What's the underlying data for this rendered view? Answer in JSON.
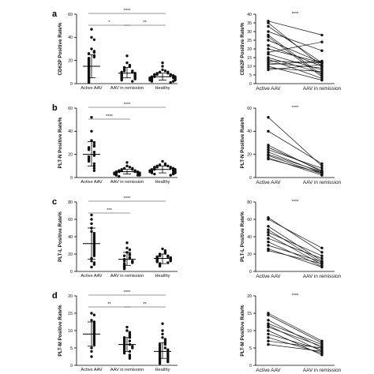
{
  "chart_data": [
    {
      "panel": "a",
      "type": "scatter",
      "variant": "dot-plot",
      "ylabel": "CD62P Positive Rate%",
      "ylim": [
        0,
        60
      ],
      "yticks": [
        0,
        20,
        40,
        60
      ],
      "categories": [
        "Active AAV",
        "AAV in remission",
        "Healthy"
      ],
      "groups": [
        {
          "name": "Active AAV",
          "mean": 15,
          "sd_low": 5,
          "sd_high": 25,
          "values": [
            47,
            40,
            38,
            30,
            28,
            27,
            26,
            24,
            23,
            22,
            21,
            20,
            19,
            18,
            17,
            16,
            15,
            14,
            13,
            12,
            11,
            10,
            9,
            8,
            7,
            6,
            5,
            4,
            3,
            2,
            1
          ]
        },
        {
          "name": "AAV in remission",
          "mean": 9,
          "sd_low": 5,
          "sd_high": 14,
          "values": [
            24,
            18,
            16,
            15,
            14,
            13,
            12,
            11,
            11,
            10,
            10,
            9,
            9,
            8,
            8,
            7,
            7,
            6,
            6,
            5,
            5,
            4,
            4,
            3,
            2
          ]
        },
        {
          "name": "Healthy",
          "mean": 6,
          "sd_low": 3,
          "sd_high": 9,
          "values": [
            18,
            15,
            12,
            11,
            10,
            10,
            9,
            9,
            8,
            8,
            8,
            7,
            7,
            7,
            6,
            6,
            6,
            6,
            5,
            5,
            5,
            5,
            4,
            4,
            4,
            4,
            3,
            3,
            3,
            2,
            2,
            1
          ]
        }
      ],
      "significance": [
        {
          "from": 0,
          "to": 2,
          "label": "****",
          "level": 2
        },
        {
          "from": 0,
          "to": 1,
          "label": "*",
          "level": 1
        },
        {
          "from": 1,
          "to": 2,
          "label": "**",
          "level": 1
        }
      ]
    },
    {
      "panel": "a",
      "type": "line",
      "variant": "paired",
      "ylabel": "CD62P Positive Rate%",
      "ylim": [
        0,
        40
      ],
      "yticks": [
        0,
        5,
        10,
        15,
        20,
        25,
        30,
        35,
        40
      ],
      "categories": [
        "Active AAV",
        "AAV in remission"
      ],
      "pairs": [
        [
          36,
          28
        ],
        [
          35,
          10
        ],
        [
          33,
          12
        ],
        [
          30,
          19
        ],
        [
          28,
          5
        ],
        [
          27,
          4
        ],
        [
          25,
          12
        ],
        [
          22,
          10
        ],
        [
          20,
          12
        ],
        [
          18,
          24
        ],
        [
          17,
          8
        ],
        [
          15,
          6
        ],
        [
          14,
          3
        ],
        [
          13,
          12
        ],
        [
          12,
          9
        ],
        [
          11,
          13
        ],
        [
          10,
          2
        ],
        [
          9,
          7
        ],
        [
          8,
          11
        ]
      ],
      "significance": [
        {
          "from": 0,
          "to": 1,
          "label": "****"
        }
      ]
    },
    {
      "panel": "b",
      "type": "scatter",
      "variant": "dot-plot",
      "ylabel": "PLT-N Positive Rate%",
      "ylim": [
        0,
        60
      ],
      "yticks": [
        0,
        20,
        40,
        60
      ],
      "categories": [
        "Active AAV",
        "AAV in remission",
        "Healthy"
      ],
      "groups": [
        {
          "name": "Active AAV",
          "mean": 20,
          "sd_low": 10,
          "sd_high": 31,
          "values": [
            52,
            40,
            32,
            30,
            28,
            27,
            26,
            25,
            24,
            22,
            20,
            19,
            18,
            17,
            16,
            15,
            14,
            12,
            10,
            8,
            6
          ]
        },
        {
          "name": "AAV in remission",
          "mean": 5,
          "sd_low": 3,
          "sd_high": 7,
          "values": [
            13,
            10,
            9,
            8,
            8,
            7,
            7,
            6,
            6,
            6,
            5,
            5,
            5,
            5,
            4,
            4,
            4,
            4,
            3,
            3,
            3,
            2,
            2,
            2,
            1
          ]
        },
        {
          "name": "Healthy",
          "mean": 7,
          "sd_low": 4,
          "sd_high": 10,
          "values": [
            14,
            12,
            11,
            11,
            10,
            10,
            9,
            9,
            9,
            8,
            8,
            8,
            7,
            7,
            7,
            7,
            6,
            6,
            6,
            6,
            5,
            5,
            5,
            4,
            4,
            4,
            3,
            3,
            2
          ]
        }
      ],
      "significance": [
        {
          "from": 0,
          "to": 2,
          "label": "****",
          "level": 2
        },
        {
          "from": 0,
          "to": 1,
          "label": "****",
          "level": 1
        }
      ]
    },
    {
      "panel": "b",
      "type": "line",
      "variant": "paired",
      "ylabel": "PLT-N Positive Rate%",
      "ylim": [
        0,
        60
      ],
      "yticks": [
        0,
        20,
        40,
        60
      ],
      "categories": [
        "Active AAV",
        "AAV in remission"
      ],
      "pairs": [
        [
          52,
          10
        ],
        [
          40,
          12
        ],
        [
          28,
          5
        ],
        [
          26,
          6
        ],
        [
          24,
          8
        ],
        [
          22,
          4
        ],
        [
          20,
          5
        ],
        [
          19,
          3
        ],
        [
          17,
          2
        ],
        [
          16,
          4
        ]
      ],
      "significance": [
        {
          "from": 0,
          "to": 1,
          "label": "****"
        }
      ]
    },
    {
      "panel": "c",
      "type": "scatter",
      "variant": "dot-plot",
      "ylabel": "PLT-L Positive Rate%",
      "ylim": [
        0,
        80
      ],
      "yticks": [
        0,
        20,
        40,
        60,
        80
      ],
      "categories": [
        "Active AAV",
        "AAV in remission",
        "Healthy"
      ],
      "groups": [
        {
          "name": "Active AAV",
          "mean": 32,
          "sd_low": 14,
          "sd_high": 50,
          "values": [
            65,
            60,
            55,
            50,
            46,
            44,
            42,
            40,
            38,
            36,
            34,
            32,
            30,
            28,
            26,
            24,
            22,
            20,
            18,
            15,
            12,
            10,
            8,
            5
          ]
        },
        {
          "name": "AAV in remission",
          "mean": 14,
          "sd_low": 7,
          "sd_high": 22,
          "values": [
            33,
            27,
            25,
            22,
            20,
            19,
            18,
            16,
            15,
            14,
            13,
            12,
            12,
            11,
            10,
            9,
            8,
            7,
            6,
            5,
            4,
            3
          ]
        },
        {
          "name": "Healthy",
          "mean": 15,
          "sd_low": 9,
          "sd_high": 20,
          "values": [
            26,
            24,
            22,
            21,
            20,
            19,
            18,
            18,
            17,
            17,
            16,
            16,
            15,
            15,
            14,
            14,
            13,
            13,
            12,
            12,
            11,
            10,
            9,
            8,
            7,
            6
          ]
        }
      ],
      "significance": [
        {
          "from": 0,
          "to": 2,
          "label": "****",
          "level": 2
        },
        {
          "from": 0,
          "to": 1,
          "label": "***",
          "level": 1
        }
      ]
    },
    {
      "panel": "c",
      "type": "line",
      "variant": "paired",
      "ylabel": "PLT-L Positive Rate%",
      "ylim": [
        0,
        80
      ],
      "yticks": [
        0,
        20,
        40,
        60,
        80
      ],
      "categories": [
        "Active AAV",
        "AAV in remission"
      ],
      "pairs": [
        [
          62,
          22
        ],
        [
          60,
          27
        ],
        [
          52,
          12
        ],
        [
          48,
          10
        ],
        [
          45,
          18
        ],
        [
          42,
          8
        ],
        [
          38,
          15
        ],
        [
          34,
          6
        ],
        [
          30,
          11
        ],
        [
          26,
          5
        ],
        [
          24,
          9
        ]
      ],
      "significance": [
        {
          "from": 0,
          "to": 1,
          "label": "****"
        }
      ]
    },
    {
      "panel": "d",
      "type": "scatter",
      "variant": "dot-plot",
      "ylabel": "PLT-M Positive Rate%",
      "ylim": [
        0,
        20
      ],
      "yticks": [
        0,
        5,
        10,
        15,
        20
      ],
      "categories": [
        "Active AAV",
        "AAV in remission",
        "Healthy"
      ],
      "groups": [
        {
          "name": "Active AAV",
          "mean": 9,
          "sd_low": 5.5,
          "sd_high": 12.5,
          "values": [
            15,
            14.5,
            13,
            12.5,
            12,
            11.5,
            11,
            10.5,
            10,
            9.5,
            9,
            8.5,
            8,
            7.5,
            7,
            6.5,
            6,
            5,
            4,
            2.5
          ]
        },
        {
          "name": "AAV in remission",
          "mean": 6,
          "sd_low": 4,
          "sd_high": 8,
          "values": [
            11,
            10,
            9.5,
            9,
            8.5,
            8,
            8,
            7.5,
            7,
            7,
            6.5,
            6,
            6,
            5.5,
            5.5,
            5,
            5,
            4.5,
            4,
            4,
            3.5,
            3,
            2.5,
            2
          ]
        },
        {
          "name": "Healthy",
          "mean": 4,
          "sd_low": 2,
          "sd_high": 6.5,
          "values": [
            12,
            10,
            9,
            8,
            7.5,
            7,
            6.5,
            6,
            6,
            5.5,
            5,
            5,
            4.5,
            4.5,
            4,
            4,
            3.5,
            3.5,
            3,
            3,
            2.5,
            2.5,
            2,
            2,
            1.5,
            1.5,
            1,
            1,
            0.5
          ]
        }
      ],
      "significance": [
        {
          "from": 0,
          "to": 2,
          "label": "****",
          "level": 2
        },
        {
          "from": 0,
          "to": 1,
          "label": "**",
          "level": 1
        },
        {
          "from": 1,
          "to": 2,
          "label": "**",
          "level": 1
        }
      ]
    },
    {
      "panel": "d",
      "type": "line",
      "variant": "paired",
      "ylabel": "PLT-M Positive Rate%",
      "ylim": [
        0,
        20
      ],
      "yticks": [
        0,
        5,
        10,
        15,
        20
      ],
      "categories": [
        "Active AAV",
        "AAV in remission"
      ],
      "pairs": [
        [
          15,
          7
        ],
        [
          14.5,
          6.5
        ],
        [
          13,
          5
        ],
        [
          12,
          6
        ],
        [
          11.5,
          4
        ],
        [
          11,
          5.5
        ],
        [
          10,
          3
        ],
        [
          9,
          4.5
        ],
        [
          8,
          3.5
        ],
        [
          7,
          5
        ],
        [
          6,
          4
        ]
      ],
      "significance": [
        {
          "from": 0,
          "to": 1,
          "label": "****"
        }
      ]
    }
  ]
}
